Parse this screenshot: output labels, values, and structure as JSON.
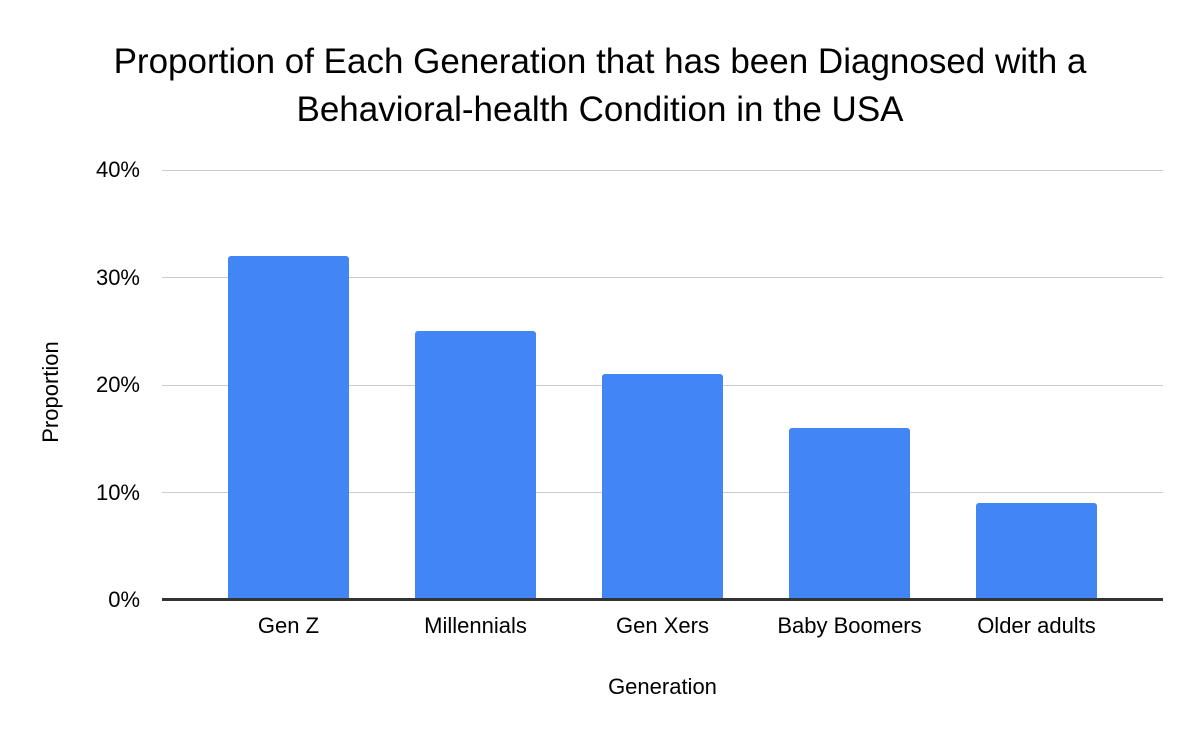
{
  "page": {
    "background": "#ffffff"
  },
  "chart_data": {
    "type": "bar",
    "title": "Proportion of Each Generation that has been Diagnosed with a Behavioral-health Condition in the USA",
    "categories": [
      "Gen Z",
      "Millennials",
      "Gen Xers",
      "Baby Boomers",
      "Older adults"
    ],
    "values": [
      32,
      25,
      21,
      16,
      9
    ],
    "values_unit": "%",
    "xlabel": "Generation",
    "ylabel": "Proportion",
    "ylim": [
      0,
      40
    ],
    "yticks": [
      0,
      10,
      20,
      30,
      40
    ],
    "ytick_labels": [
      "0%",
      "10%",
      "20%",
      "30%",
      "40%"
    ],
    "grid": true,
    "legend": "none",
    "bar_color": "#4285f4",
    "gridline_color": "#cccccc",
    "axis_line_color": "#333333",
    "text_color": "#000000"
  }
}
